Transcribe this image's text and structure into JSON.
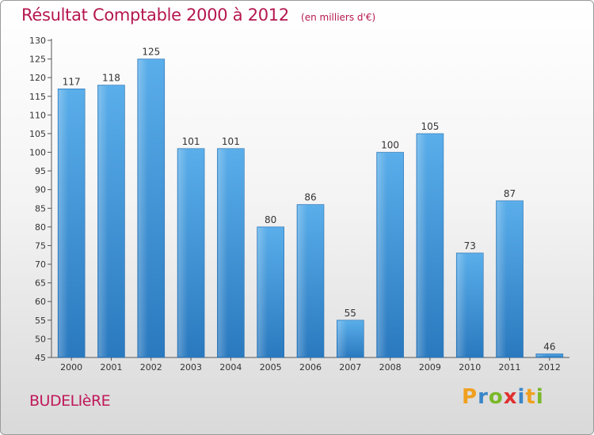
{
  "header": {
    "title": "Résultat Comptable 2000 à 2012",
    "subtitle": "(en milliers d'€)"
  },
  "footer": {
    "town": "BUDELIèRE",
    "logo": {
      "letters": [
        "P",
        "r",
        "o",
        "x",
        "i",
        "t",
        "i"
      ],
      "colors": [
        "#f0a020",
        "#3a86c8",
        "#7ab828",
        "#e03030",
        "#3a86c8",
        "#f0a020",
        "#7ab828"
      ]
    }
  },
  "chart_data": {
    "type": "bar",
    "title": "Résultat Comptable 2000 à 2012",
    "xlabel": "",
    "ylabel": "(en milliers d'€)",
    "categories": [
      "2000",
      "2001",
      "2002",
      "2003",
      "2004",
      "2005",
      "2006",
      "2007",
      "2008",
      "2009",
      "2010",
      "2011",
      "2012"
    ],
    "values": [
      117,
      118,
      125,
      101,
      101,
      80,
      86,
      55,
      100,
      105,
      73,
      87,
      46
    ],
    "ylim": [
      45,
      130
    ],
    "yticks": [
      45,
      50,
      55,
      60,
      65,
      70,
      75,
      80,
      85,
      90,
      95,
      100,
      105,
      110,
      115,
      120,
      125,
      130
    ],
    "bar_color": "#3a8fd6",
    "grid": false
  }
}
